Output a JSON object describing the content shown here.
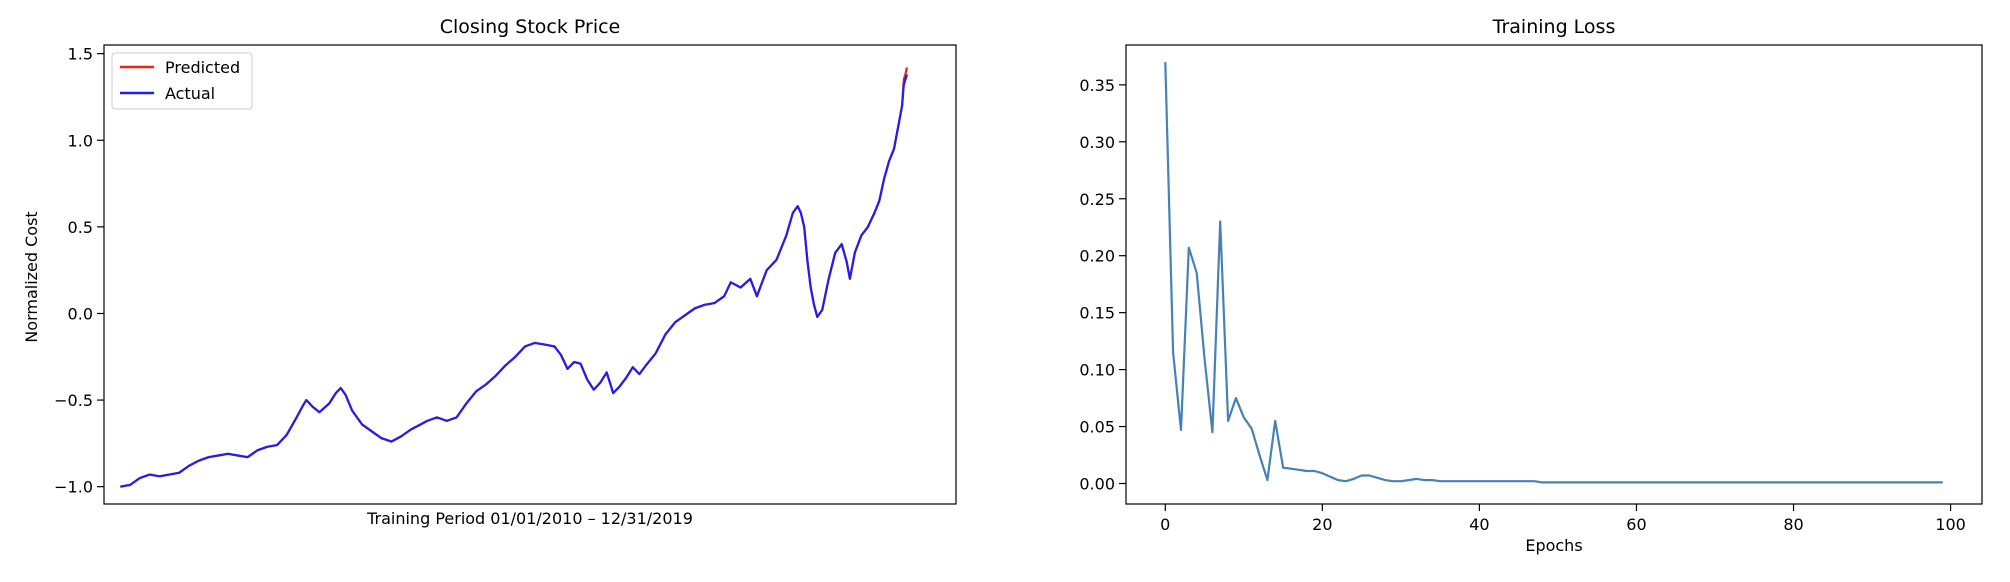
{
  "chart_data": [
    {
      "type": "line",
      "title": "Closing Stock Price",
      "xlabel": "Training Period 01/01/2010 – 12/31/2019",
      "ylabel": "Normalized Cost",
      "xlim": [
        -50,
        2560
      ],
      "ylim": [
        -1.1,
        1.55
      ],
      "yticks": [
        -1.0,
        -0.5,
        0.0,
        0.5,
        1.0,
        1.5
      ],
      "ytick_labels": [
        "−1.0",
        "−0.5",
        "0.0",
        "0.5",
        "1.0",
        "1.5"
      ],
      "xticks_visible": false,
      "legend_position": "upper-left",
      "grid": false,
      "series": [
        {
          "name": "Predicted",
          "color": "#e8261b",
          "points": [
            [
              0,
              -1.0
            ],
            [
              30,
              -0.99
            ],
            [
              60,
              -0.95
            ],
            [
              90,
              -0.93
            ],
            [
              120,
              -0.94
            ],
            [
              150,
              -0.93
            ],
            [
              180,
              -0.92
            ],
            [
              210,
              -0.88
            ],
            [
              240,
              -0.85
            ],
            [
              270,
              -0.83
            ],
            [
              300,
              -0.82
            ],
            [
              330,
              -0.81
            ],
            [
              360,
              -0.82
            ],
            [
              390,
              -0.83
            ],
            [
              420,
              -0.79
            ],
            [
              450,
              -0.77
            ],
            [
              480,
              -0.76
            ],
            [
              510,
              -0.7
            ],
            [
              540,
              -0.6
            ],
            [
              560,
              -0.53
            ],
            [
              570,
              -0.5
            ],
            [
              590,
              -0.54
            ],
            [
              610,
              -0.57
            ],
            [
              640,
              -0.52
            ],
            [
              660,
              -0.46
            ],
            [
              675,
              -0.43
            ],
            [
              690,
              -0.47
            ],
            [
              710,
              -0.56
            ],
            [
              740,
              -0.64
            ],
            [
              770,
              -0.68
            ],
            [
              800,
              -0.72
            ],
            [
              830,
              -0.74
            ],
            [
              860,
              -0.71
            ],
            [
              890,
              -0.67
            ],
            [
              910,
              -0.65
            ],
            [
              940,
              -0.62
            ],
            [
              970,
              -0.6
            ],
            [
              1000,
              -0.62
            ],
            [
              1030,
              -0.6
            ],
            [
              1060,
              -0.52
            ],
            [
              1090,
              -0.45
            ],
            [
              1120,
              -0.41
            ],
            [
              1150,
              -0.36
            ],
            [
              1180,
              -0.3
            ],
            [
              1210,
              -0.25
            ],
            [
              1240,
              -0.19
            ],
            [
              1270,
              -0.17
            ],
            [
              1300,
              -0.18
            ],
            [
              1330,
              -0.19
            ],
            [
              1350,
              -0.24
            ],
            [
              1370,
              -0.32
            ],
            [
              1390,
              -0.28
            ],
            [
              1410,
              -0.29
            ],
            [
              1430,
              -0.38
            ],
            [
              1450,
              -0.44
            ],
            [
              1470,
              -0.4
            ],
            [
              1490,
              -0.34
            ],
            [
              1510,
              -0.46
            ],
            [
              1530,
              -0.42
            ],
            [
              1550,
              -0.37
            ],
            [
              1570,
              -0.31
            ],
            [
              1590,
              -0.35
            ],
            [
              1610,
              -0.3
            ],
            [
              1640,
              -0.23
            ],
            [
              1670,
              -0.12
            ],
            [
              1700,
              -0.05
            ],
            [
              1730,
              -0.01
            ],
            [
              1760,
              0.03
            ],
            [
              1790,
              0.05
            ],
            [
              1820,
              0.06
            ],
            [
              1850,
              0.1
            ],
            [
              1870,
              0.18
            ],
            [
              1900,
              0.15
            ],
            [
              1930,
              0.2
            ],
            [
              1950,
              0.1
            ],
            [
              1980,
              0.25
            ],
            [
              2010,
              0.31
            ],
            [
              2040,
              0.45
            ],
            [
              2060,
              0.58
            ],
            [
              2075,
              0.62
            ],
            [
              2085,
              0.58
            ],
            [
              2095,
              0.5
            ],
            [
              2105,
              0.3
            ],
            [
              2115,
              0.15
            ],
            [
              2125,
              0.05
            ],
            [
              2135,
              -0.02
            ],
            [
              2150,
              0.02
            ],
            [
              2170,
              0.2
            ],
            [
              2190,
              0.35
            ],
            [
              2210,
              0.4
            ],
            [
              2225,
              0.3
            ],
            [
              2235,
              0.2
            ],
            [
              2250,
              0.35
            ],
            [
              2270,
              0.45
            ],
            [
              2290,
              0.5
            ],
            [
              2310,
              0.58
            ],
            [
              2325,
              0.65
            ],
            [
              2340,
              0.78
            ],
            [
              2355,
              0.88
            ],
            [
              2370,
              0.95
            ],
            [
              2385,
              1.1
            ],
            [
              2395,
              1.2
            ],
            [
              2400,
              1.35
            ],
            [
              2405,
              1.38
            ],
            [
              2410,
              1.42
            ]
          ]
        },
        {
          "name": "Actual",
          "color": "#1f1fee",
          "points": [
            [
              0,
              -1.0
            ],
            [
              30,
              -0.99
            ],
            [
              60,
              -0.95
            ],
            [
              90,
              -0.93
            ],
            [
              120,
              -0.94
            ],
            [
              150,
              -0.93
            ],
            [
              180,
              -0.92
            ],
            [
              210,
              -0.88
            ],
            [
              240,
              -0.85
            ],
            [
              270,
              -0.83
            ],
            [
              300,
              -0.82
            ],
            [
              330,
              -0.81
            ],
            [
              360,
              -0.82
            ],
            [
              390,
              -0.83
            ],
            [
              420,
              -0.79
            ],
            [
              450,
              -0.77
            ],
            [
              480,
              -0.76
            ],
            [
              510,
              -0.7
            ],
            [
              540,
              -0.6
            ],
            [
              560,
              -0.53
            ],
            [
              570,
              -0.5
            ],
            [
              590,
              -0.54
            ],
            [
              610,
              -0.57
            ],
            [
              640,
              -0.52
            ],
            [
              660,
              -0.46
            ],
            [
              675,
              -0.43
            ],
            [
              690,
              -0.47
            ],
            [
              710,
              -0.56
            ],
            [
              740,
              -0.64
            ],
            [
              770,
              -0.68
            ],
            [
              800,
              -0.72
            ],
            [
              830,
              -0.74
            ],
            [
              860,
              -0.71
            ],
            [
              890,
              -0.67
            ],
            [
              910,
              -0.65
            ],
            [
              940,
              -0.62
            ],
            [
              970,
              -0.6
            ],
            [
              1000,
              -0.62
            ],
            [
              1030,
              -0.6
            ],
            [
              1060,
              -0.52
            ],
            [
              1090,
              -0.45
            ],
            [
              1120,
              -0.41
            ],
            [
              1150,
              -0.36
            ],
            [
              1180,
              -0.3
            ],
            [
              1210,
              -0.25
            ],
            [
              1240,
              -0.19
            ],
            [
              1270,
              -0.17
            ],
            [
              1300,
              -0.18
            ],
            [
              1330,
              -0.19
            ],
            [
              1350,
              -0.24
            ],
            [
              1370,
              -0.32
            ],
            [
              1390,
              -0.28
            ],
            [
              1410,
              -0.29
            ],
            [
              1430,
              -0.38
            ],
            [
              1450,
              -0.44
            ],
            [
              1470,
              -0.4
            ],
            [
              1490,
              -0.34
            ],
            [
              1510,
              -0.46
            ],
            [
              1530,
              -0.42
            ],
            [
              1550,
              -0.37
            ],
            [
              1570,
              -0.31
            ],
            [
              1590,
              -0.35
            ],
            [
              1610,
              -0.3
            ],
            [
              1640,
              -0.23
            ],
            [
              1670,
              -0.12
            ],
            [
              1700,
              -0.05
            ],
            [
              1730,
              -0.01
            ],
            [
              1760,
              0.03
            ],
            [
              1790,
              0.05
            ],
            [
              1820,
              0.06
            ],
            [
              1850,
              0.1
            ],
            [
              1870,
              0.18
            ],
            [
              1900,
              0.15
            ],
            [
              1930,
              0.2
            ],
            [
              1950,
              0.1
            ],
            [
              1980,
              0.25
            ],
            [
              2010,
              0.31
            ],
            [
              2040,
              0.45
            ],
            [
              2060,
              0.58
            ],
            [
              2075,
              0.62
            ],
            [
              2085,
              0.58
            ],
            [
              2095,
              0.5
            ],
            [
              2105,
              0.3
            ],
            [
              2115,
              0.15
            ],
            [
              2125,
              0.05
            ],
            [
              2135,
              -0.02
            ],
            [
              2150,
              0.02
            ],
            [
              2170,
              0.2
            ],
            [
              2190,
              0.35
            ],
            [
              2210,
              0.4
            ],
            [
              2225,
              0.3
            ],
            [
              2235,
              0.2
            ],
            [
              2250,
              0.35
            ],
            [
              2270,
              0.45
            ],
            [
              2290,
              0.5
            ],
            [
              2310,
              0.58
            ],
            [
              2325,
              0.65
            ],
            [
              2340,
              0.78
            ],
            [
              2355,
              0.88
            ],
            [
              2370,
              0.95
            ],
            [
              2385,
              1.1
            ],
            [
              2395,
              1.2
            ],
            [
              2400,
              1.32
            ],
            [
              2405,
              1.35
            ],
            [
              2410,
              1.38
            ]
          ]
        }
      ]
    },
    {
      "type": "line",
      "title": "Training Loss",
      "xlabel": "Epochs",
      "ylabel": "",
      "xlim": [
        -5,
        104
      ],
      "ylim": [
        -0.018,
        0.385
      ],
      "xticks": [
        0,
        20,
        40,
        60,
        80,
        100
      ],
      "xtick_labels": [
        "0",
        "20",
        "40",
        "60",
        "80",
        "100"
      ],
      "yticks": [
        0.0,
        0.05,
        0.1,
        0.15,
        0.2,
        0.25,
        0.3,
        0.35
      ],
      "ytick_labels": [
        "0.00",
        "0.05",
        "0.10",
        "0.15",
        "0.20",
        "0.25",
        "0.30",
        "0.35"
      ],
      "grid": false,
      "series": [
        {
          "color": "#4682b4",
          "x": [
            0,
            1,
            2,
            3,
            4,
            5,
            6,
            7,
            8,
            9,
            10,
            11,
            12,
            13,
            14,
            15,
            16,
            17,
            18,
            19,
            20,
            21,
            22,
            23,
            24,
            25,
            26,
            27,
            28,
            29,
            30,
            31,
            32,
            33,
            34,
            35,
            36,
            37,
            38,
            39,
            40,
            41,
            42,
            43,
            44,
            45,
            46,
            47,
            48,
            49,
            50,
            51,
            52,
            53,
            54,
            55,
            56,
            57,
            58,
            59,
            60,
            61,
            62,
            63,
            64,
            65,
            66,
            67,
            68,
            69,
            70,
            71,
            72,
            73,
            74,
            75,
            76,
            77,
            78,
            79,
            80,
            81,
            82,
            83,
            84,
            85,
            86,
            87,
            88,
            89,
            90,
            91,
            92,
            93,
            94,
            95,
            96,
            97,
            98,
            99
          ],
          "y": [
            0.37,
            0.115,
            0.047,
            0.207,
            0.185,
            0.11,
            0.045,
            0.23,
            0.055,
            0.075,
            0.058,
            0.048,
            0.025,
            0.003,
            0.055,
            0.014,
            0.013,
            0.012,
            0.011,
            0.011,
            0.009,
            0.006,
            0.003,
            0.002,
            0.004,
            0.007,
            0.007,
            0.005,
            0.003,
            0.002,
            0.002,
            0.003,
            0.004,
            0.003,
            0.003,
            0.002,
            0.002,
            0.002,
            0.002,
            0.002,
            0.002,
            0.002,
            0.002,
            0.002,
            0.002,
            0.002,
            0.002,
            0.002,
            0.001,
            0.001,
            0.001,
            0.001,
            0.001,
            0.001,
            0.001,
            0.001,
            0.001,
            0.001,
            0.001,
            0.001,
            0.001,
            0.001,
            0.001,
            0.001,
            0.001,
            0.001,
            0.001,
            0.001,
            0.001,
            0.001,
            0.001,
            0.001,
            0.001,
            0.001,
            0.001,
            0.001,
            0.001,
            0.001,
            0.001,
            0.001,
            0.001,
            0.001,
            0.001,
            0.001,
            0.001,
            0.001,
            0.001,
            0.001,
            0.001,
            0.001,
            0.001,
            0.001,
            0.001,
            0.001,
            0.001,
            0.001,
            0.001,
            0.001,
            0.001,
            0.001
          ]
        }
      ]
    }
  ]
}
